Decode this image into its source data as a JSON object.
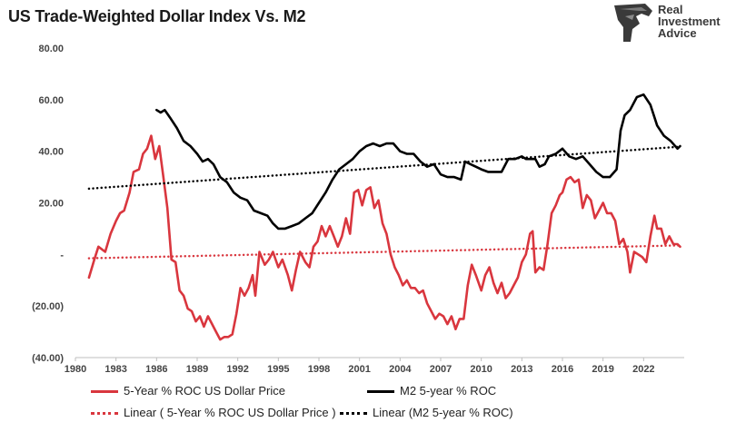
{
  "title": "US Trade-Weighted Dollar Index Vs. M2",
  "logo": {
    "icon": "eagle-head-logo",
    "lines": [
      "Real",
      "Investment",
      "Advice"
    ],
    "color": "#3a3a3a"
  },
  "chart_data": {
    "type": "line",
    "title": "US Trade-Weighted Dollar Index Vs. M2",
    "xlabel": "",
    "ylabel": "",
    "xlim": [
      1980,
      2025
    ],
    "ylim": [
      -40,
      80
    ],
    "x_ticks": [
      "1980",
      "1983",
      "1986",
      "1989",
      "1992",
      "1995",
      "1998",
      "2001",
      "2004",
      "2007",
      "2010",
      "2013",
      "2016",
      "2019",
      "2022"
    ],
    "y_ticks": [
      {
        "value": 80,
        "label": "80.00"
      },
      {
        "value": 60,
        "label": "60.00"
      },
      {
        "value": 40,
        "label": "40.00"
      },
      {
        "value": 20,
        "label": "20.00"
      },
      {
        "value": 0,
        "label": "-"
      },
      {
        "value": -20,
        "label": "(20.00)"
      },
      {
        "value": -40,
        "label": "(40.00)"
      }
    ],
    "grid": false,
    "legend_position": "bottom",
    "series": [
      {
        "name": "5-Year % ROC US Dollar Price",
        "color": "#d9363e",
        "style": "solid",
        "points": [
          [
            1981.0,
            -9
          ],
          [
            1981.4,
            -2
          ],
          [
            1981.7,
            3
          ],
          [
            1982.2,
            1
          ],
          [
            1982.6,
            8
          ],
          [
            1983.0,
            13
          ],
          [
            1983.3,
            16
          ],
          [
            1983.6,
            17
          ],
          [
            1984.0,
            24
          ],
          [
            1984.3,
            32
          ],
          [
            1984.7,
            33
          ],
          [
            1985.0,
            39
          ],
          [
            1985.3,
            41
          ],
          [
            1985.6,
            46
          ],
          [
            1985.9,
            37
          ],
          [
            1986.2,
            42
          ],
          [
            1986.5,
            30
          ],
          [
            1986.8,
            18
          ],
          [
            1987.1,
            -2
          ],
          [
            1987.4,
            -3
          ],
          [
            1987.7,
            -14
          ],
          [
            1988.0,
            -16
          ],
          [
            1988.3,
            -21
          ],
          [
            1988.6,
            -22
          ],
          [
            1988.9,
            -26
          ],
          [
            1989.2,
            -24
          ],
          [
            1989.5,
            -28
          ],
          [
            1989.8,
            -24
          ],
          [
            1990.1,
            -27
          ],
          [
            1990.4,
            -30
          ],
          [
            1990.7,
            -33
          ],
          [
            1991.0,
            -32
          ],
          [
            1991.3,
            -32
          ],
          [
            1991.6,
            -31
          ],
          [
            1991.9,
            -23
          ],
          [
            1992.2,
            -13
          ],
          [
            1992.5,
            -16
          ],
          [
            1992.8,
            -13
          ],
          [
            1993.1,
            -8
          ],
          [
            1993.3,
            -16
          ],
          [
            1993.6,
            1
          ],
          [
            1994.0,
            -4
          ],
          [
            1994.3,
            -2
          ],
          [
            1994.6,
            1
          ],
          [
            1995.0,
            -5
          ],
          [
            1995.3,
            -2
          ],
          [
            1995.7,
            -8
          ],
          [
            1996.0,
            -14
          ],
          [
            1996.3,
            -6
          ],
          [
            1996.6,
            1
          ],
          [
            1997.0,
            -3
          ],
          [
            1997.3,
            -5
          ],
          [
            1997.6,
            3
          ],
          [
            1997.9,
            5
          ],
          [
            1998.2,
            11
          ],
          [
            1998.5,
            7
          ],
          [
            1998.8,
            11
          ],
          [
            1999.1,
            7
          ],
          [
            1999.4,
            3
          ],
          [
            1999.7,
            7
          ],
          [
            2000.0,
            14
          ],
          [
            2000.3,
            8
          ],
          [
            2000.6,
            24
          ],
          [
            2000.9,
            25
          ],
          [
            2001.2,
            19
          ],
          [
            2001.5,
            25
          ],
          [
            2001.8,
            26
          ],
          [
            2002.1,
            18
          ],
          [
            2002.4,
            21
          ],
          [
            2002.7,
            12
          ],
          [
            2003.0,
            8
          ],
          [
            2003.3,
            0
          ],
          [
            2003.6,
            -5
          ],
          [
            2003.9,
            -8
          ],
          [
            2004.2,
            -12
          ],
          [
            2004.5,
            -10
          ],
          [
            2004.8,
            -13
          ],
          [
            2005.1,
            -13
          ],
          [
            2005.4,
            -15
          ],
          [
            2005.7,
            -14
          ],
          [
            2006.0,
            -19
          ],
          [
            2006.3,
            -22
          ],
          [
            2006.6,
            -25
          ],
          [
            2006.9,
            -23
          ],
          [
            2007.2,
            -24
          ],
          [
            2007.5,
            -27
          ],
          [
            2007.8,
            -24
          ],
          [
            2008.1,
            -29
          ],
          [
            2008.4,
            -25
          ],
          [
            2008.7,
            -25
          ],
          [
            2009.0,
            -12
          ],
          [
            2009.3,
            -4
          ],
          [
            2009.6,
            -8
          ],
          [
            2010.0,
            -14
          ],
          [
            2010.3,
            -8
          ],
          [
            2010.6,
            -5
          ],
          [
            2010.9,
            -11
          ],
          [
            2011.2,
            -15
          ],
          [
            2011.5,
            -11
          ],
          [
            2011.8,
            -17
          ],
          [
            2012.1,
            -15
          ],
          [
            2012.4,
            -12
          ],
          [
            2012.7,
            -9
          ],
          [
            2013.0,
            -3
          ],
          [
            2013.3,
            0
          ],
          [
            2013.6,
            8
          ],
          [
            2013.8,
            9
          ],
          [
            2014.0,
            -7
          ],
          [
            2014.3,
            -5
          ],
          [
            2014.6,
            -6
          ],
          [
            2014.9,
            4
          ],
          [
            2015.2,
            16
          ],
          [
            2015.5,
            19
          ],
          [
            2015.8,
            23
          ],
          [
            2016.0,
            24
          ],
          [
            2016.3,
            29
          ],
          [
            2016.6,
            30
          ],
          [
            2016.9,
            28
          ],
          [
            2017.2,
            29
          ],
          [
            2017.5,
            18
          ],
          [
            2017.8,
            23
          ],
          [
            2018.1,
            21
          ],
          [
            2018.4,
            14
          ],
          [
            2018.7,
            17
          ],
          [
            2019.0,
            20
          ],
          [
            2019.3,
            16
          ],
          [
            2019.6,
            16
          ],
          [
            2019.9,
            13
          ],
          [
            2020.2,
            4
          ],
          [
            2020.5,
            6
          ],
          [
            2020.8,
            1
          ],
          [
            2021.0,
            -7
          ],
          [
            2021.3,
            1
          ],
          [
            2021.6,
            0
          ],
          [
            2021.9,
            -1
          ],
          [
            2022.2,
            -3
          ],
          [
            2022.5,
            7
          ],
          [
            2022.8,
            15
          ],
          [
            2023.0,
            10
          ],
          [
            2023.3,
            10
          ],
          [
            2023.6,
            4
          ],
          [
            2023.9,
            7
          ],
          [
            2024.2,
            4
          ],
          [
            2024.5,
            4
          ],
          [
            2024.7,
            3
          ]
        ]
      },
      {
        "name": "M2 5-year % ROC",
        "color": "#000000",
        "style": "solid",
        "points": [
          [
            1986.0,
            56
          ],
          [
            1986.3,
            55
          ],
          [
            1986.6,
            56
          ],
          [
            1987.0,
            53
          ],
          [
            1987.5,
            49
          ],
          [
            1988.0,
            44
          ],
          [
            1988.5,
            42
          ],
          [
            1989.0,
            39
          ],
          [
            1989.4,
            36
          ],
          [
            1989.8,
            37
          ],
          [
            1990.2,
            35
          ],
          [
            1990.7,
            30
          ],
          [
            1991.2,
            28
          ],
          [
            1991.7,
            24
          ],
          [
            1992.2,
            22
          ],
          [
            1992.7,
            21
          ],
          [
            1993.2,
            17
          ],
          [
            1993.7,
            16
          ],
          [
            1994.2,
            15
          ],
          [
            1994.6,
            12
          ],
          [
            1995.0,
            10
          ],
          [
            1995.5,
            10
          ],
          [
            1996.0,
            11
          ],
          [
            1996.5,
            12
          ],
          [
            1997.0,
            14
          ],
          [
            1997.5,
            16
          ],
          [
            1998.0,
            20
          ],
          [
            1998.5,
            24
          ],
          [
            1999.0,
            29
          ],
          [
            1999.5,
            33
          ],
          [
            2000.0,
            35
          ],
          [
            2000.5,
            37
          ],
          [
            2001.0,
            40
          ],
          [
            2001.5,
            42
          ],
          [
            2002.0,
            43
          ],
          [
            2002.5,
            42
          ],
          [
            2003.0,
            43
          ],
          [
            2003.5,
            43
          ],
          [
            2004.0,
            40
          ],
          [
            2004.5,
            39
          ],
          [
            2005.0,
            39
          ],
          [
            2005.5,
            36
          ],
          [
            2006.0,
            34
          ],
          [
            2006.5,
            35
          ],
          [
            2007.0,
            31
          ],
          [
            2007.5,
            30
          ],
          [
            2008.0,
            30
          ],
          [
            2008.5,
            29
          ],
          [
            2008.8,
            36
          ],
          [
            2009.2,
            35
          ],
          [
            2009.6,
            34
          ],
          [
            2010.0,
            33
          ],
          [
            2010.5,
            32
          ],
          [
            2011.0,
            32
          ],
          [
            2011.5,
            32
          ],
          [
            2012.0,
            37
          ],
          [
            2012.5,
            37
          ],
          [
            2013.0,
            38
          ],
          [
            2013.3,
            37
          ],
          [
            2013.6,
            37
          ],
          [
            2014.0,
            37
          ],
          [
            2014.3,
            34
          ],
          [
            2014.7,
            35
          ],
          [
            2015.0,
            38
          ],
          [
            2015.5,
            39
          ],
          [
            2016.0,
            41
          ],
          [
            2016.5,
            38
          ],
          [
            2017.0,
            37
          ],
          [
            2017.5,
            38
          ],
          [
            2018.0,
            35
          ],
          [
            2018.5,
            32
          ],
          [
            2019.0,
            30
          ],
          [
            2019.5,
            30
          ],
          [
            2020.0,
            33
          ],
          [
            2020.3,
            48
          ],
          [
            2020.6,
            54
          ],
          [
            2021.0,
            56
          ],
          [
            2021.5,
            61
          ],
          [
            2022.0,
            62
          ],
          [
            2022.5,
            58
          ],
          [
            2023.0,
            50
          ],
          [
            2023.5,
            46
          ],
          [
            2024.0,
            44
          ],
          [
            2024.5,
            41
          ],
          [
            2024.7,
            42
          ]
        ]
      },
      {
        "name": "Linear ( 5-Year % ROC US Dollar Price )",
        "color": "#d9363e",
        "style": "dotted",
        "points": [
          [
            1981.0,
            -1.5
          ],
          [
            2024.7,
            3.5
          ]
        ]
      },
      {
        "name": "Linear (M2 5-year % ROC)",
        "color": "#000000",
        "style": "dotted",
        "points": [
          [
            1981.0,
            25.5
          ],
          [
            2024.7,
            41.8
          ]
        ]
      }
    ]
  }
}
